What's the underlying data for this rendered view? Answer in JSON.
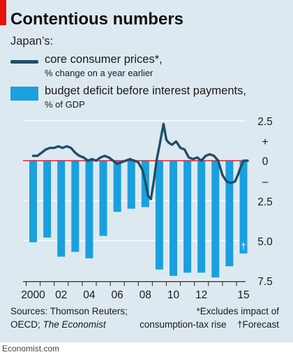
{
  "header": {
    "title": "Contentious numbers",
    "subtitle": "Japan’s:"
  },
  "legend": {
    "line_label": "core consumer prices*,",
    "line_sub": "% change on a year earlier",
    "bar_label": "budget deficit before interest payments,",
    "bar_sub": "% of GDP"
  },
  "colors": {
    "line": "#1f4e68",
    "bars": "#1aa0de",
    "zero_line": "#d7263d",
    "accent": "#e3120b",
    "background": "#dde9f0"
  },
  "chart_data": {
    "type": "bar",
    "ylim": [
      7.5,
      -2.5
    ],
    "y_ticks": [
      "2.5",
      "+",
      "0",
      "–",
      "2.5",
      "5.0",
      "7.5"
    ],
    "x_ticks": [
      "2000",
      "02",
      "04",
      "06",
      "08",
      "10",
      "12",
      "15"
    ],
    "grid": true,
    "series": [
      {
        "name": "budget deficit before interest payments, % of GDP",
        "kind": "bar",
        "x": [
          2000,
          2001,
          2002,
          2003,
          2004,
          2005,
          2006,
          2007,
          2008,
          2009,
          2010,
          2011,
          2012,
          2013,
          2014,
          2015
        ],
        "values": [
          5.1,
          4.8,
          6.0,
          5.7,
          6.1,
          4.7,
          3.2,
          3.0,
          2.9,
          6.8,
          7.2,
          7.0,
          7.0,
          7.3,
          6.6,
          5.8
        ],
        "annotation": {
          "x": 2015,
          "text": "†"
        }
      },
      {
        "name": "core consumer prices*, % change on a year earlier",
        "kind": "line",
        "x": [
          2000.0,
          2000.3,
          2000.6,
          2000.9,
          2001.2,
          2001.5,
          2001.8,
          2002.1,
          2002.4,
          2002.7,
          2003.0,
          2003.3,
          2003.6,
          2003.9,
          2004.2,
          2004.5,
          2004.8,
          2005.1,
          2005.4,
          2005.7,
          2006.0,
          2006.3,
          2006.6,
          2006.9,
          2007.2,
          2007.5,
          2007.8,
          2008.0,
          2008.2,
          2008.4,
          2008.6,
          2008.8,
          2009.0,
          2009.3,
          2009.5,
          2009.7,
          2009.9,
          2010.2,
          2010.5,
          2010.8,
          2011.1,
          2011.4,
          2011.7,
          2012.0,
          2012.3,
          2012.6,
          2012.9,
          2013.2,
          2013.5,
          2013.8,
          2014.1,
          2014.4,
          2014.6,
          2014.8,
          2015.0,
          2015.3
        ],
        "values": [
          -0.3,
          -0.3,
          -0.5,
          -0.7,
          -0.8,
          -0.8,
          -0.9,
          -0.8,
          -0.9,
          -0.8,
          -0.5,
          -0.3,
          -0.2,
          0.0,
          -0.1,
          0.0,
          -0.2,
          -0.3,
          -0.2,
          0.0,
          0.2,
          0.1,
          0.0,
          -0.1,
          0.0,
          0.1,
          0.6,
          1.3,
          2.2,
          2.4,
          1.3,
          0.0,
          -0.9,
          -2.3,
          -1.3,
          -1.1,
          -1.0,
          -1.2,
          -0.8,
          -0.7,
          -0.2,
          -0.1,
          -0.2,
          0.0,
          -0.3,
          -0.4,
          -0.3,
          0.0,
          0.9,
          1.3,
          1.4,
          1.3,
          0.9,
          0.4,
          0.0,
          0.0
        ]
      }
    ]
  },
  "sources": {
    "line1": "Sources: Thomson Reuters;",
    "line2_prefix": "OECD;",
    "line2_italic": "The Economist"
  },
  "notes": {
    "line1": "*Excludes impact of",
    "line2": "consumption-tax rise",
    "line3": "†Forecast"
  },
  "footer": "Economist.com"
}
